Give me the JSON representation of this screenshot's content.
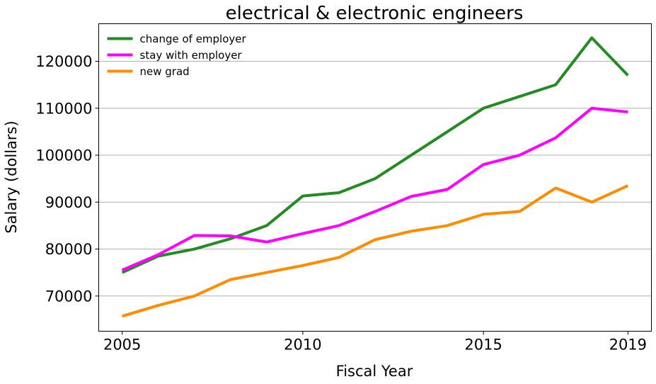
{
  "chart_data": {
    "type": "line",
    "title": "electrical & electronic engineers",
    "xlabel": "Fiscal Year",
    "ylabel": "Salary (dollars)",
    "x": [
      2005,
      2006,
      2007,
      2008,
      2009,
      2010,
      2011,
      2012,
      2013,
      2014,
      2015,
      2016,
      2017,
      2018,
      2019
    ],
    "xlim": [
      2004.35,
      2019.65
    ],
    "ylim": [
      62500,
      128000
    ],
    "xticks": [
      2005,
      2010,
      2015,
      2019
    ],
    "xtick_labels": [
      "2005",
      "2010",
      "2015",
      "2019"
    ],
    "yticks": [
      70000,
      80000,
      90000,
      100000,
      110000,
      120000
    ],
    "ytick_labels": [
      "70000",
      "80000",
      "90000",
      "100000",
      "110000",
      "120000"
    ],
    "grid": "y",
    "legend_position": "top-left",
    "series": [
      {
        "name": "change of employer",
        "color": "#228b22",
        "values": [
          75000,
          78500,
          80000,
          82200,
          85000,
          91300,
          92000,
          95000,
          100000,
          105000,
          110000,
          112500,
          115000,
          125000,
          117000
        ]
      },
      {
        "name": "stay with employer",
        "color": "#ff00ff",
        "values": [
          75500,
          78800,
          82900,
          82800,
          81500,
          83300,
          85000,
          88000,
          91200,
          92700,
          98000,
          100000,
          103700,
          110000,
          109200
        ]
      },
      {
        "name": "new grad",
        "color": "#ff8c00",
        "values": [
          65700,
          68000,
          70000,
          73500,
          75000,
          76500,
          78200,
          82000,
          83800,
          85000,
          87400,
          88000,
          93000,
          90000,
          93500
        ]
      }
    ]
  }
}
